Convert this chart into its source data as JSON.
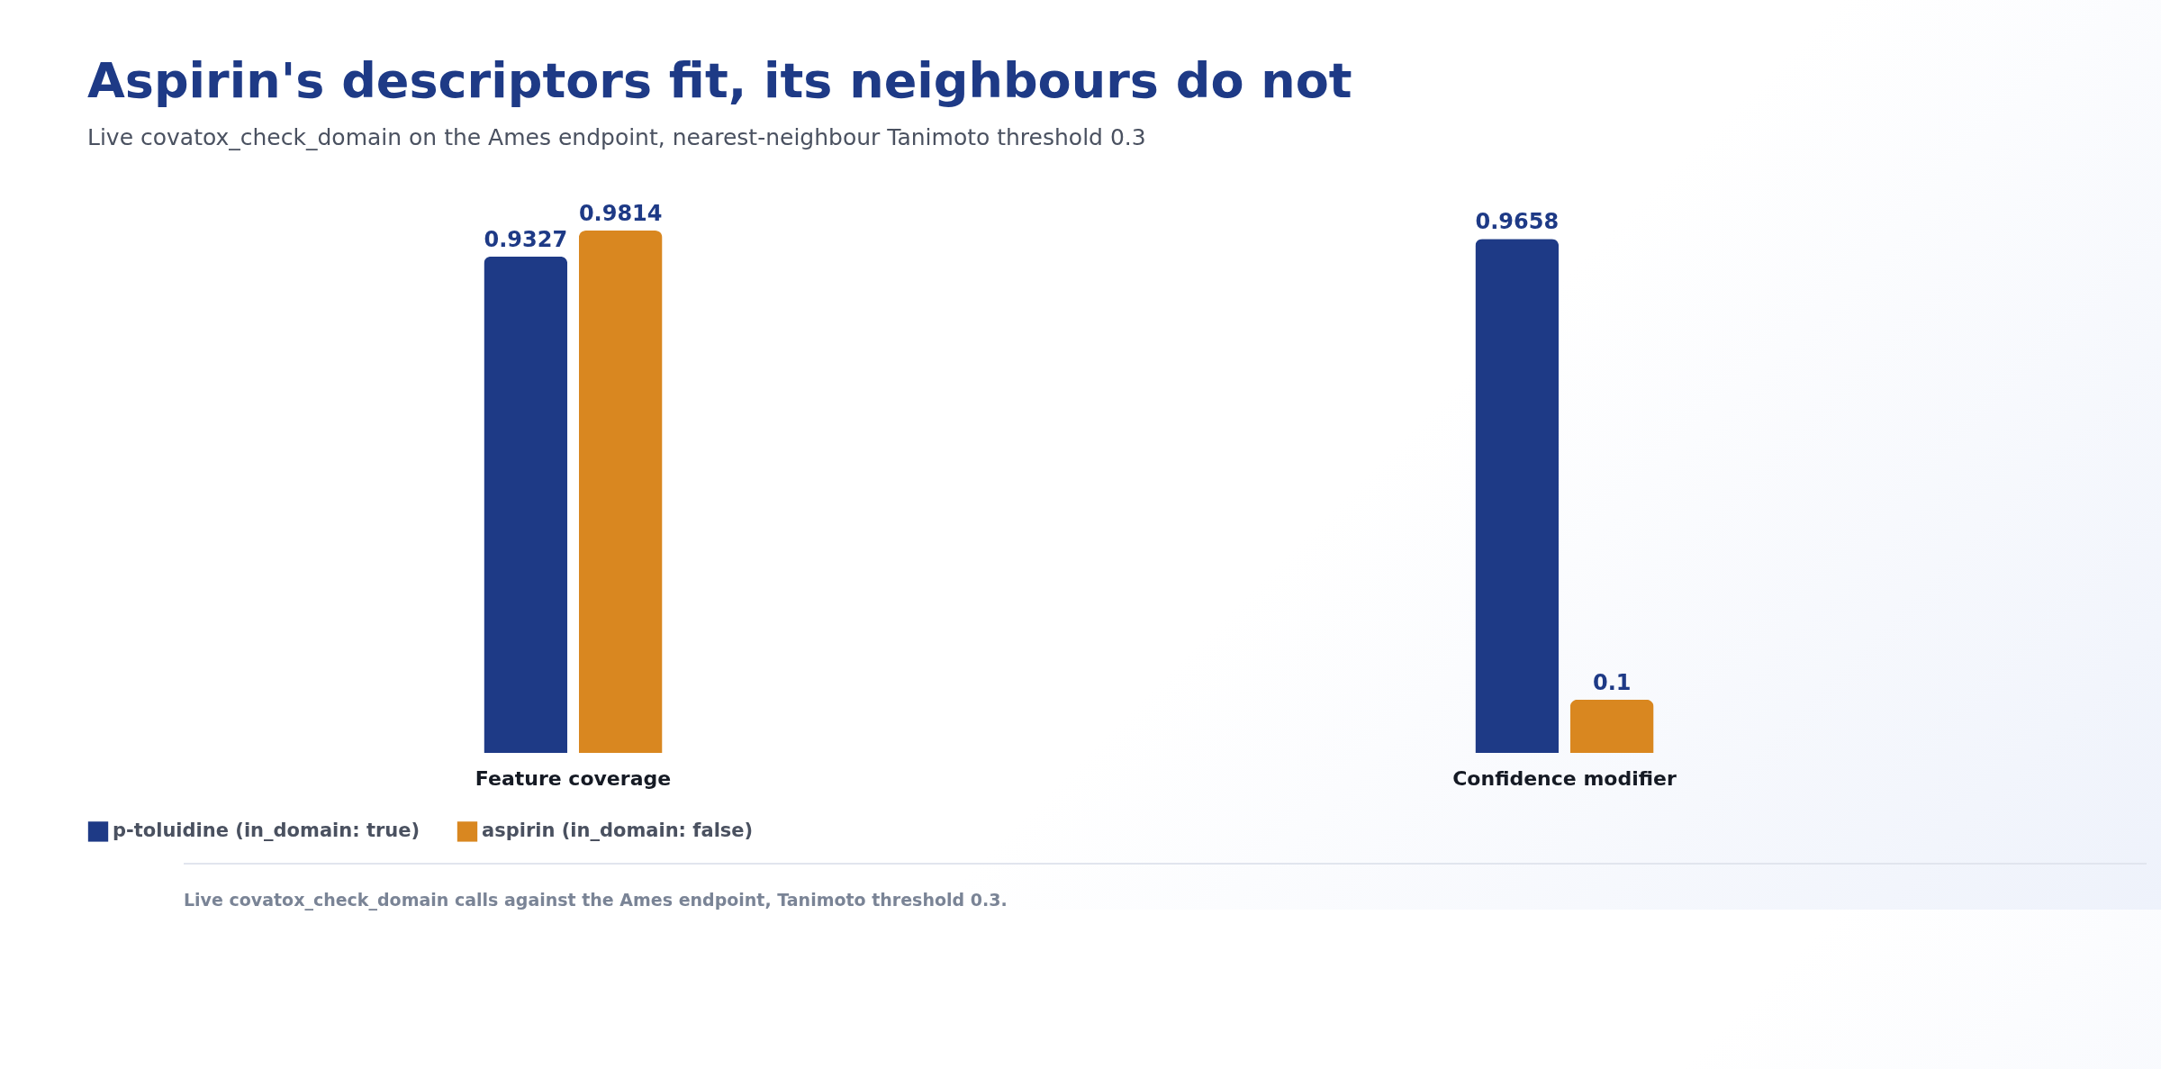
{
  "chart_data": {
    "type": "bar",
    "title": "Aspirin's descriptors fit, its neighbours do not",
    "subtitle": "Live covatox_check_domain on the Ames endpoint, nearest-neighbour Tanimoto threshold 0.3",
    "categories": [
      "Feature coverage",
      "Confidence modifier"
    ],
    "series": [
      {
        "name": "p-toluidine (in_domain: true)",
        "color": "#1e3a86",
        "values": [
          0.9327,
          0.9658
        ]
      },
      {
        "name": "aspirin (in_domain: false)",
        "color": "#d98720",
        "values": [
          0.9814,
          0.1
        ]
      }
    ],
    "data_labels": true,
    "legend": "bottom",
    "annotations": [
      "Live covatox_check_domain calls against the Ames endpoint, Tanimoto threshold 0.3."
    ]
  }
}
